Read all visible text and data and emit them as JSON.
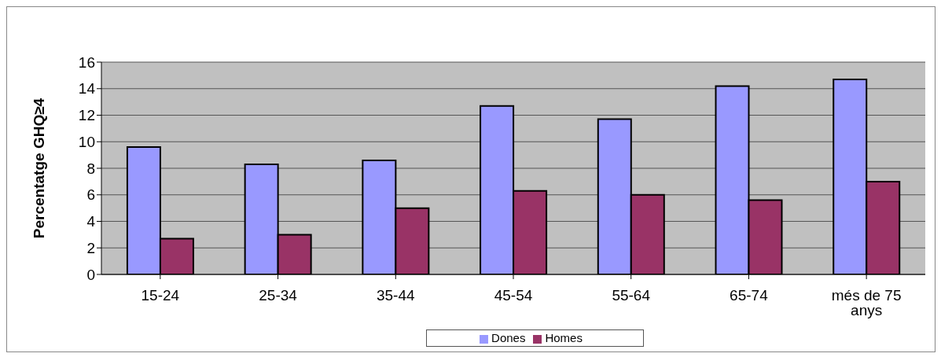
{
  "chart_data": {
    "type": "bar",
    "ylabel": "Percentatge GHQ≥4",
    "categories": [
      "15-24",
      "25-34",
      "35-44",
      "45-54",
      "55-64",
      "65-74",
      "més de 75 anys"
    ],
    "series": [
      {
        "name": "Dones",
        "color": "#9999ff",
        "values": [
          9.6,
          8.3,
          8.6,
          12.7,
          11.7,
          14.2,
          14.7
        ]
      },
      {
        "name": "Homes",
        "color": "#993366",
        "values": [
          2.7,
          3.0,
          5.0,
          6.3,
          6.0,
          5.6,
          7.0
        ]
      }
    ],
    "ylim": [
      0,
      16
    ],
    "yticks": [
      0,
      2,
      4,
      6,
      8,
      10,
      12,
      14,
      16
    ],
    "grid": "y",
    "legend": "bottom"
  }
}
